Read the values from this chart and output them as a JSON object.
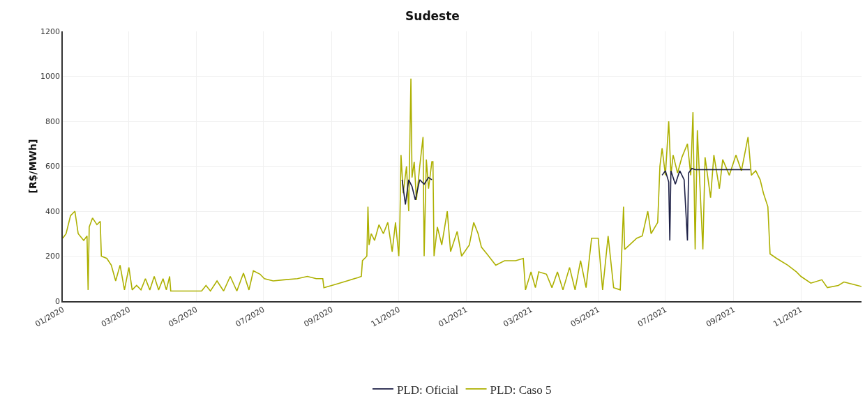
{
  "chart_data": {
    "type": "line",
    "title": "Sudeste",
    "ylabel": "[R$/MWh]",
    "xlim": [
      "2020-01-01",
      "2021-12-26"
    ],
    "ylim": [
      0,
      1200
    ],
    "yticks": [
      0,
      200,
      400,
      600,
      800,
      1000,
      1200
    ],
    "xticks": [
      {
        "value": "2020-01-01",
        "label": "01/2020"
      },
      {
        "value": "2020-03-01",
        "label": "03/2020"
      },
      {
        "value": "2020-05-01",
        "label": "05/2020"
      },
      {
        "value": "2020-07-01",
        "label": "07/2020"
      },
      {
        "value": "2020-09-01",
        "label": "09/2020"
      },
      {
        "value": "2020-11-01",
        "label": "11/2020"
      },
      {
        "value": "2021-01-01",
        "label": "01/2021"
      },
      {
        "value": "2021-03-01",
        "label": "03/2021"
      },
      {
        "value": "2021-05-01",
        "label": "05/2021"
      },
      {
        "value": "2021-07-01",
        "label": "07/2021"
      },
      {
        "value": "2021-09-01",
        "label": "09/2021"
      },
      {
        "value": "2021-11-01",
        "label": "11/2021"
      }
    ],
    "grid": true,
    "legend": "bottom",
    "marker": "none",
    "line_style": "solid",
    "series": [
      {
        "name": "PLD: Oficial",
        "color": "#1c1f45",
        "x": [
          "2020-11-04",
          "2020-11-07",
          "2020-11-10",
          "2020-11-13",
          "2020-11-16",
          "2020-11-20",
          "2020-11-24",
          "2020-11-28",
          "2020-12-01",
          "2020-12-02",
          "2021-06-28",
          "2021-07-01",
          "2021-07-04",
          "2021-07-05",
          "2021-07-06",
          "2021-07-10",
          "2021-07-14",
          "2021-07-18",
          "2021-07-21",
          "2021-07-22",
          "2021-07-25",
          "2021-07-28",
          "2021-08-15",
          "2021-09-01",
          "2021-09-16"
        ],
        "values": [
          540,
          430,
          540,
          510,
          450,
          540,
          520,
          550,
          540,
          null,
          560,
          580,
          530,
          270,
          580,
          520,
          580,
          540,
          270,
          570,
          590,
          585,
          585,
          585,
          585
        ]
      },
      {
        "name": "PLD: Caso 5",
        "color": "#adb000",
        "x": [
          "2020-01-01",
          "2020-01-04",
          "2020-01-08",
          "2020-01-12",
          "2020-01-15",
          "2020-01-20",
          "2020-01-23",
          "2020-01-24",
          "2020-01-25",
          "2020-01-28",
          "2020-02-01",
          "2020-02-04",
          "2020-02-05",
          "2020-02-10",
          "2020-02-14",
          "2020-02-18",
          "2020-02-22",
          "2020-02-26",
          "2020-03-01",
          "2020-03-04",
          "2020-03-08",
          "2020-03-12",
          "2020-03-16",
          "2020-03-20",
          "2020-03-24",
          "2020-03-28",
          "2020-04-01",
          "2020-04-04",
          "2020-04-07",
          "2020-04-08",
          "2020-05-06",
          "2020-05-10",
          "2020-05-14",
          "2020-05-20",
          "2020-05-26",
          "2020-06-01",
          "2020-06-07",
          "2020-06-13",
          "2020-06-18",
          "2020-06-22",
          "2020-06-28",
          "2020-07-02",
          "2020-07-10",
          "2020-07-20",
          "2020-08-01",
          "2020-08-10",
          "2020-08-18",
          "2020-08-24",
          "2020-08-25",
          "2020-09-05",
          "2020-09-15",
          "2020-09-25",
          "2020-09-28",
          "2020-09-29",
          "2020-10-03",
          "2020-10-04",
          "2020-10-05",
          "2020-10-07",
          "2020-10-10",
          "2020-10-14",
          "2020-10-18",
          "2020-10-22",
          "2020-10-26",
          "2020-10-29",
          "2020-11-01",
          "2020-11-02",
          "2020-11-03",
          "2020-11-05",
          "2020-11-08",
          "2020-11-10",
          "2020-11-12",
          "2020-11-13",
          "2020-11-15",
          "2020-11-17",
          "2020-11-20",
          "2020-11-23",
          "2020-11-24",
          "2020-11-26",
          "2020-11-28",
          "2020-12-01",
          "2020-12-02",
          "2020-12-03",
          "2020-12-06",
          "2020-12-10",
          "2020-12-15",
          "2020-12-18",
          "2020-12-24",
          "2020-12-28",
          "2021-01-04",
          "2021-01-08",
          "2021-01-12",
          "2021-01-15",
          "2021-01-20",
          "2021-01-28",
          "2021-02-05",
          "2021-02-15",
          "2021-02-22",
          "2021-02-24",
          "2021-03-01",
          "2021-03-05",
          "2021-03-08",
          "2021-03-15",
          "2021-03-20",
          "2021-03-25",
          "2021-03-30",
          "2021-04-05",
          "2021-04-10",
          "2021-04-15",
          "2021-04-20",
          "2021-04-25",
          "2021-05-01",
          "2021-05-05",
          "2021-05-10",
          "2021-05-15",
          "2021-05-21",
          "2021-05-24",
          "2021-05-25",
          "2021-06-05",
          "2021-06-10",
          "2021-06-15",
          "2021-06-18",
          "2021-06-24",
          "2021-06-26",
          "2021-06-28",
          "2021-07-01",
          "2021-07-04",
          "2021-07-06",
          "2021-07-08",
          "2021-07-12",
          "2021-07-16",
          "2021-07-21",
          "2021-07-24",
          "2021-07-26",
          "2021-07-28",
          "2021-07-30",
          "2021-08-04",
          "2021-08-06",
          "2021-08-11",
          "2021-08-14",
          "2021-08-19",
          "2021-08-22",
          "2021-08-28",
          "2021-09-03",
          "2021-09-08",
          "2021-09-14",
          "2021-09-17",
          "2021-09-21",
          "2021-09-25",
          "2021-09-28",
          "2021-10-02",
          "2021-10-04",
          "2021-10-10",
          "2021-10-20",
          "2021-10-28",
          "2021-11-01",
          "2021-11-10",
          "2021-11-20",
          "2021-11-25",
          "2021-12-05",
          "2021-12-10",
          "2021-12-18",
          "2021-12-26"
        ],
        "values": [
          280,
          300,
          380,
          400,
          300,
          270,
          290,
          50,
          330,
          370,
          340,
          355,
          200,
          190,
          160,
          90,
          160,
          50,
          150,
          50,
          70,
          50,
          100,
          50,
          110,
          50,
          100,
          50,
          110,
          45,
          45,
          70,
          45,
          90,
          45,
          110,
          45,
          125,
          50,
          135,
          120,
          100,
          90,
          95,
          100,
          110,
          100,
          100,
          60,
          75,
          90,
          105,
          110,
          180,
          200,
          420,
          250,
          300,
          270,
          340,
          300,
          350,
          220,
          350,
          200,
          360,
          650,
          480,
          600,
          400,
          990,
          550,
          620,
          450,
          600,
          730,
          200,
          630,
          500,
          620,
          620,
          200,
          330,
          250,
          400,
          220,
          310,
          200,
          250,
          350,
          300,
          240,
          210,
          160,
          180,
          180,
          190,
          50,
          130,
          60,
          130,
          120,
          60,
          130,
          50,
          150,
          50,
          180,
          60,
          280,
          280,
          50,
          290,
          60,
          50,
          420,
          230,
          280,
          290,
          400,
          300,
          350,
          600,
          680,
          560,
          800,
          560,
          650,
          570,
          640,
          700,
          560,
          840,
          230,
          760,
          230,
          640,
          460,
          650,
          500,
          630,
          560,
          650,
          580,
          730,
          560,
          580,
          540,
          480,
          420,
          210,
          190,
          160,
          130,
          110,
          80,
          95,
          60,
          70,
          85,
          75,
          65
        ]
      }
    ]
  }
}
